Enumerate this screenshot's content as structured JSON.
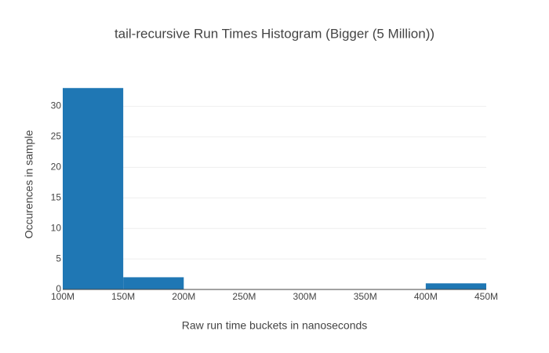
{
  "chart_data": {
    "type": "histogram",
    "title": "tail-recursive Run Times Histogram (Bigger (5 Million))",
    "x_label": "Raw run time buckets in nanoseconds",
    "y_label": "Occurences in sample",
    "bins": [
      100000000,
      150000000,
      200000000,
      250000000,
      300000000,
      350000000,
      400000000,
      450000000
    ],
    "values": [
      33,
      2,
      0,
      0,
      0,
      0,
      1
    ],
    "color": "#1f77b4",
    "xlim": [
      100000000,
      450000000
    ],
    "xticks": [
      {
        "value": 100000000,
        "label": "100M"
      },
      {
        "value": 150000000,
        "label": "150M"
      },
      {
        "value": 200000000,
        "label": "200M"
      },
      {
        "value": 250000000,
        "label": "250M"
      },
      {
        "value": 300000000,
        "label": "300M"
      },
      {
        "value": 350000000,
        "label": "350M"
      },
      {
        "value": 400000000,
        "label": "400M"
      },
      {
        "value": 450000000,
        "label": "450M"
      }
    ],
    "ylim": [
      0,
      34.7
    ],
    "yticks": [
      0,
      5,
      10,
      15,
      20,
      25,
      30
    ],
    "grid": true
  }
}
